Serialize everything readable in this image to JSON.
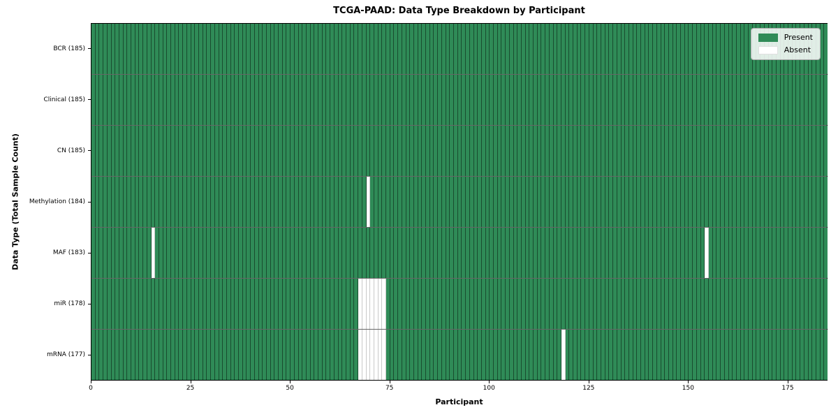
{
  "chart_data": {
    "type": "heatmap",
    "title": "TCGA-PAAD: Data Type Breakdown by Participant",
    "xlabel": "Participant",
    "ylabel": "Data Type (Total Sample Count)",
    "n_participants": 185,
    "x_range": [
      0,
      185
    ],
    "x_ticks": [
      0,
      25,
      50,
      75,
      100,
      125,
      150,
      175
    ],
    "grid": "cell-edges",
    "legend_position": "upper-right",
    "legend": [
      {
        "label": "Present",
        "value": "present",
        "color": "#2f8b57"
      },
      {
        "label": "Absent",
        "value": "absent",
        "color": "#ffffff"
      }
    ],
    "colors": {
      "present": "#2f8b57",
      "absent": "#ffffff"
    },
    "rows": [
      {
        "label": "BCR (185)",
        "data_type": "BCR",
        "present_count": 185,
        "absent_participants": []
      },
      {
        "label": "Clinical (185)",
        "data_type": "Clinical",
        "present_count": 185,
        "absent_participants": []
      },
      {
        "label": "CN (185)",
        "data_type": "CN",
        "present_count": 185,
        "absent_participants": []
      },
      {
        "label": "Methylation (184)",
        "data_type": "Methylation",
        "present_count": 184,
        "absent_participants": [
          69
        ]
      },
      {
        "label": "MAF (183)",
        "data_type": "MAF",
        "present_count": 183,
        "absent_participants": [
          15,
          154
        ]
      },
      {
        "label": "miR (178)",
        "data_type": "miR",
        "present_count": 178,
        "absent_participants": [
          67,
          68,
          69,
          70,
          71,
          72,
          73
        ]
      },
      {
        "label": "mRNA (177)",
        "data_type": "mRNA",
        "present_count": 177,
        "absent_participants": [
          67,
          68,
          69,
          70,
          71,
          72,
          73,
          118
        ]
      }
    ]
  }
}
